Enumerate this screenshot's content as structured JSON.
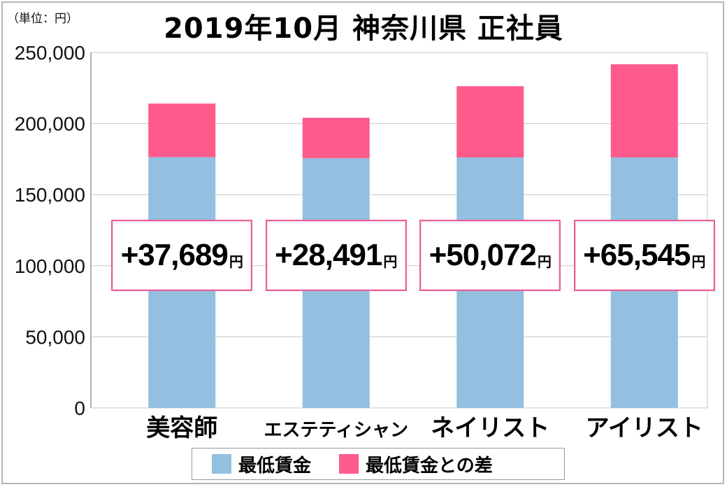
{
  "unit_label": "（単位：円）",
  "colors": {
    "min_wage": "#93bfe0",
    "difference": "#ff5a8c",
    "box_border": "#e7609a",
    "grid": "#c8c8c8"
  },
  "chart_data": {
    "type": "bar",
    "stacked": true,
    "title": "2019年10月 神奈川県 正社員",
    "categories": [
      "美容師",
      "エステティシャン",
      "ネイリスト",
      "アイリスト"
    ],
    "series": [
      {
        "name": "最低賃金",
        "values": [
          176400,
          175600,
          176200,
          176200
        ]
      },
      {
        "name": "最低賃金との差",
        "values": [
          37689,
          28491,
          50072,
          65545
        ]
      }
    ],
    "annotations": [
      {
        "value": "+37,689",
        "unit": "円"
      },
      {
        "value": "+28,491",
        "unit": "円"
      },
      {
        "value": "+50,072",
        "unit": "円"
      },
      {
        "value": "+65,545",
        "unit": "円"
      }
    ],
    "yticks": [
      "0",
      "50,000",
      "100,000",
      "150,000",
      "200,000",
      "250,000"
    ],
    "ytick_values": [
      0,
      50000,
      100000,
      150000,
      200000,
      250000
    ],
    "ylim": [
      0,
      250000
    ],
    "grid": true,
    "legend_position": "bottom"
  }
}
